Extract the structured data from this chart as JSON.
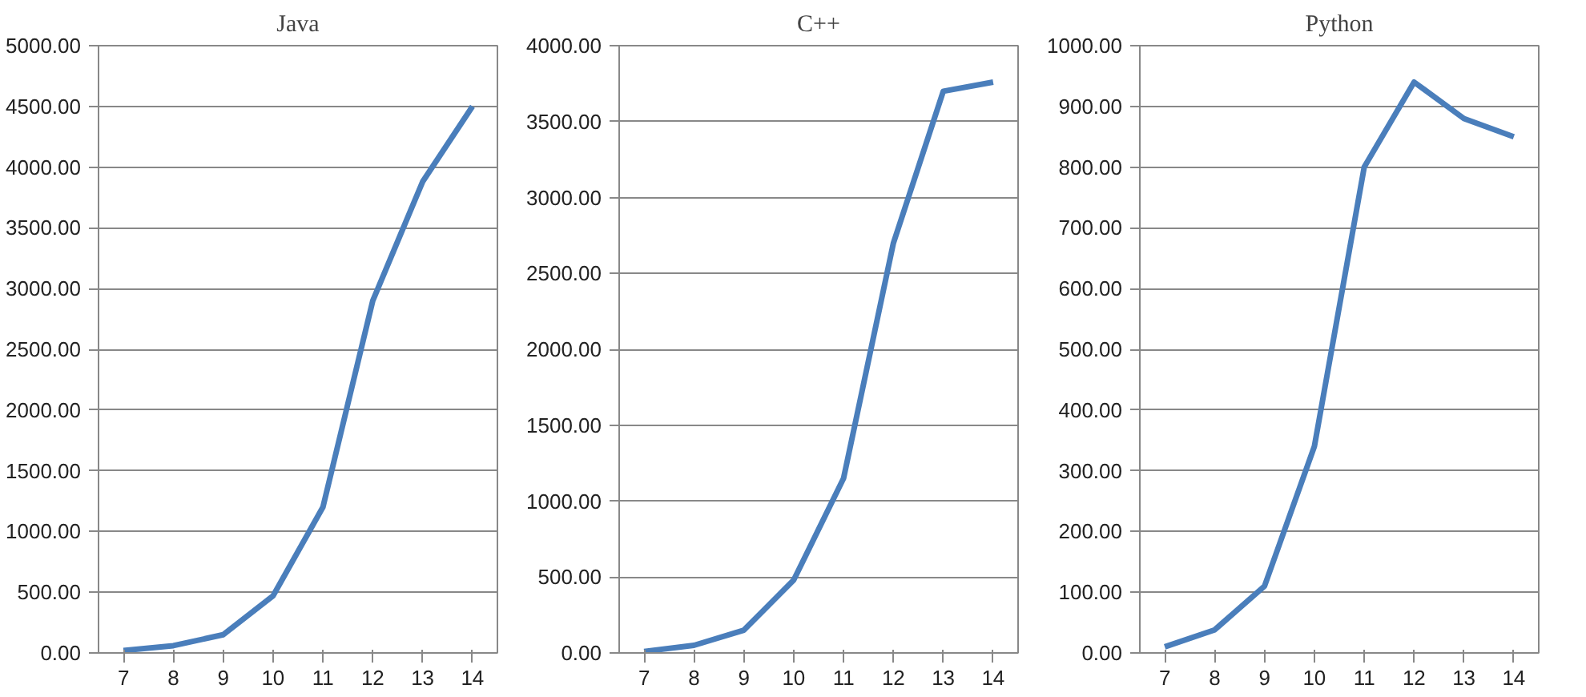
{
  "chart_data": [
    {
      "type": "line",
      "title": "Java",
      "categories": [
        "7",
        "8",
        "9",
        "10",
        "11",
        "12",
        "13",
        "14"
      ],
      "series": [
        {
          "color": "#4a7ebb",
          "values": [
            20,
            60,
            150,
            470,
            1200,
            2900,
            3880,
            4500
          ]
        }
      ],
      "ylim": [
        0,
        5000
      ],
      "yticks": [
        {
          "value": 0,
          "label": "0.00"
        },
        {
          "value": 500,
          "label": "500.00"
        },
        {
          "value": 1000,
          "label": "1000.00"
        },
        {
          "value": 1500,
          "label": "1500.00"
        },
        {
          "value": 2000,
          "label": "2000.00"
        },
        {
          "value": 2500,
          "label": "2500.00"
        },
        {
          "value": 3000,
          "label": "3000.00"
        },
        {
          "value": 3500,
          "label": "3500.00"
        },
        {
          "value": 4000,
          "label": "4000.00"
        },
        {
          "value": 4500,
          "label": "4500.00"
        },
        {
          "value": 5000,
          "label": "5000.00"
        }
      ],
      "grid": "y",
      "marker": "none",
      "line_style": "solid"
    },
    {
      "type": "line",
      "title": "C++",
      "categories": [
        "7",
        "8",
        "9",
        "10",
        "11",
        "12",
        "13",
        "14"
      ],
      "series": [
        {
          "color": "#4a7ebb",
          "values": [
            10,
            50,
            150,
            480,
            1150,
            2700,
            3700,
            3760
          ]
        }
      ],
      "ylim": [
        0,
        4000
      ],
      "yticks": [
        {
          "value": 0,
          "label": "0.00"
        },
        {
          "value": 500,
          "label": "500.00"
        },
        {
          "value": 1000,
          "label": "1000.00"
        },
        {
          "value": 1500,
          "label": "1500.00"
        },
        {
          "value": 2000,
          "label": "2000.00"
        },
        {
          "value": 2500,
          "label": "2500.00"
        },
        {
          "value": 3000,
          "label": "3000.00"
        },
        {
          "value": 3500,
          "label": "3500.00"
        },
        {
          "value": 4000,
          "label": "4000.00"
        }
      ],
      "grid": "y",
      "marker": "none",
      "line_style": "solid"
    },
    {
      "type": "line",
      "title": "Python",
      "categories": [
        "7",
        "8",
        "9",
        "10",
        "11",
        "12",
        "13",
        "14"
      ],
      "series": [
        {
          "color": "#4a7ebb",
          "values": [
            10,
            38,
            110,
            340,
            800,
            940,
            880,
            850
          ]
        }
      ],
      "ylim": [
        0,
        1000
      ],
      "yticks": [
        {
          "value": 0,
          "label": "0.00"
        },
        {
          "value": 100,
          "label": "100.00"
        },
        {
          "value": 200,
          "label": "200.00"
        },
        {
          "value": 300,
          "label": "300.00"
        },
        {
          "value": 400,
          "label": "400.00"
        },
        {
          "value": 500,
          "label": "500.00"
        },
        {
          "value": 600,
          "label": "600.00"
        },
        {
          "value": 700,
          "label": "700.00"
        },
        {
          "value": 800,
          "label": "800.00"
        },
        {
          "value": 900,
          "label": "900.00"
        },
        {
          "value": 1000,
          "label": "1000.00"
        }
      ],
      "grid": "y",
      "marker": "none",
      "line_style": "solid"
    }
  ]
}
